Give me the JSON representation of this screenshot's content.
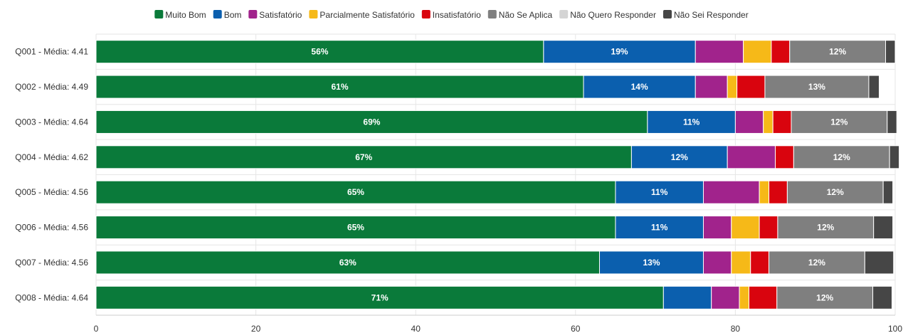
{
  "chart_data": {
    "type": "bar",
    "orientation": "horizontal",
    "stacked": true,
    "categories": [
      "Q001 - Média: 4.41",
      "Q002 - Média: 4.49",
      "Q003 - Média: 4.64",
      "Q004 - Média: 4.62",
      "Q005 - Média: 4.56",
      "Q006 - Média: 4.56",
      "Q007 - Média: 4.56",
      "Q008 - Média: 4.64"
    ],
    "series": [
      {
        "name": "Muito Bom",
        "color": "#0a7a3a",
        "values": [
          56,
          61,
          69,
          67,
          65,
          65,
          63,
          71
        ],
        "labels": [
          "56%",
          "61%",
          "69%",
          "67%",
          "65%",
          "65%",
          "63%",
          "71%"
        ]
      },
      {
        "name": "Bom",
        "color": "#0b5fae",
        "values": [
          19,
          14,
          11,
          12,
          11,
          11,
          13,
          6
        ],
        "labels": [
          "19%",
          "14%",
          "11%",
          "12%",
          "11%",
          "11%",
          "13%",
          ""
        ]
      },
      {
        "name": "Satisfatório",
        "color": "#a1238c",
        "values": [
          6,
          4,
          3.5,
          6,
          7,
          3.5,
          3.5,
          3.5
        ],
        "labels": [
          "",
          "",
          "",
          "",
          "",
          "",
          "",
          ""
        ]
      },
      {
        "name": "Parcialmente Satisfatório",
        "color": "#f6b918",
        "values": [
          3.5,
          1.2,
          1.2,
          0,
          1.2,
          3.5,
          2.4,
          1.2
        ],
        "labels": [
          "",
          "",
          "",
          "",
          "",
          "",
          "",
          ""
        ]
      },
      {
        "name": "Insatisfatório",
        "color": "#d9040e",
        "values": [
          2.3,
          3.5,
          2.3,
          2.3,
          2.3,
          2.3,
          2.3,
          3.5
        ],
        "labels": [
          "",
          "",
          "",
          "",
          "",
          "",
          "",
          ""
        ]
      },
      {
        "name": "Não Se Aplica",
        "color": "#7f7f7f",
        "values": [
          12,
          13,
          12,
          12,
          12,
          12,
          12,
          12
        ],
        "labels": [
          "12%",
          "13%",
          "12%",
          "12%",
          "12%",
          "12%",
          "12%",
          "12%"
        ]
      },
      {
        "name": "Não Quero Responder",
        "color": "#d4d4d4",
        "values": [
          0,
          0,
          0,
          0,
          0,
          0,
          0,
          0
        ],
        "labels": [
          "",
          "",
          "",
          "",
          "",
          "",
          "",
          ""
        ]
      },
      {
        "name": "Não Sei Responder",
        "color": "#464646",
        "values": [
          1.2,
          1.3,
          1.2,
          1.2,
          1.2,
          2.4,
          3.6,
          2.4
        ],
        "labels": [
          "",
          "",
          "",
          "",
          "",
          "",
          "",
          ""
        ]
      }
    ],
    "xlim": [
      0,
      100
    ],
    "xticks": [
      "0",
      "20",
      "40",
      "60",
      "80",
      "100"
    ],
    "grid": true,
    "legend": "top"
  }
}
